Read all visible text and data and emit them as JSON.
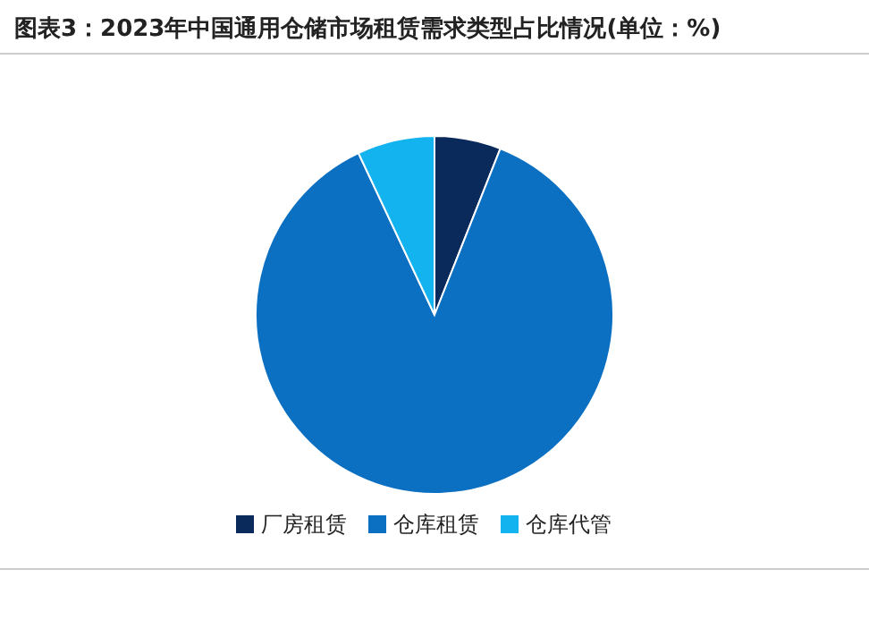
{
  "chart_data": {
    "type": "pie",
    "title": "图表3：2023年中国通用仓储市场租赁需求类型占比情况(单位：%)",
    "categories": [
      "厂房租赁",
      "仓库租赁",
      "仓库代管"
    ],
    "values": [
      6,
      87,
      7
    ],
    "colors": [
      "#0b2a5c",
      "#0b6fc2",
      "#12b3ee"
    ],
    "legend": "bottom"
  }
}
